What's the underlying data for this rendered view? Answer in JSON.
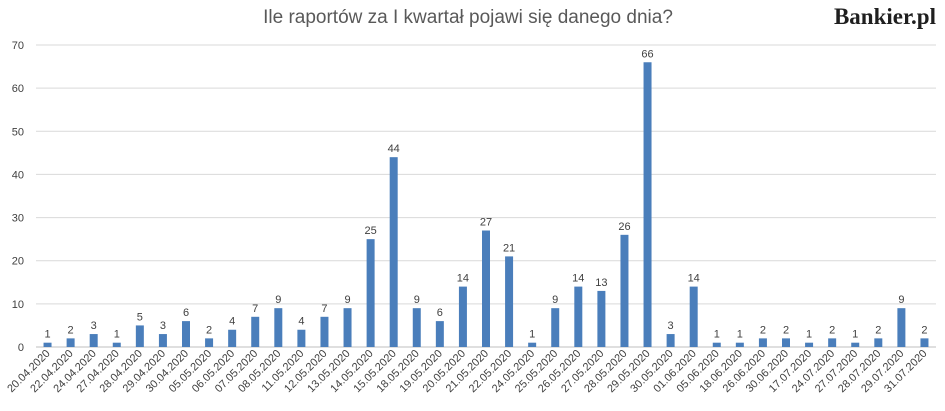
{
  "brand": "Bankier.pl",
  "colors": {
    "bar": "#4a7ebb",
    "grid": "#d9d9d9",
    "text": "#595959"
  },
  "chart_data": {
    "type": "bar",
    "title": "Ile raportów za I kwartał pojawi się danego dnia?",
    "xlabel": "",
    "ylabel": "",
    "ylim": [
      0,
      70
    ],
    "yticks": [
      0,
      10,
      20,
      30,
      40,
      50,
      60,
      70
    ],
    "grid": true,
    "legend": "none",
    "categories": [
      "20.04.2020",
      "22.04.2020",
      "24.04.2020",
      "27.04.2020",
      "28.04.2020",
      "29.04.2020",
      "30.04.2020",
      "05.05.2020",
      "06.05.2020",
      "07.05.2020",
      "08.05.2020",
      "11.05.2020",
      "12.05.2020",
      "13.05.2020",
      "14.05.2020",
      "15.05.2020",
      "18.05.2020",
      "19.05.2020",
      "20.05.2020",
      "21.05.2020",
      "22.05.2020",
      "24.05.2020",
      "25.05.2020",
      "26.05.2020",
      "27.05.2020",
      "28.05.2020",
      "29.05.2020",
      "30.05.2020",
      "01.06.2020",
      "05.06.2020",
      "18.06.2020",
      "26.06.2020",
      "30.06.2020",
      "17.07.2020",
      "24.07.2020",
      "27.07.2020",
      "28.07.2020",
      "29.07.2020",
      "31.07.2020"
    ],
    "values": [
      1,
      2,
      3,
      1,
      5,
      3,
      6,
      2,
      4,
      7,
      9,
      4,
      7,
      9,
      25,
      44,
      9,
      6,
      14,
      27,
      21,
      1,
      9,
      14,
      13,
      26,
      66,
      3,
      14,
      1,
      1,
      2,
      2,
      1,
      2,
      1,
      2,
      9,
      2
    ]
  }
}
